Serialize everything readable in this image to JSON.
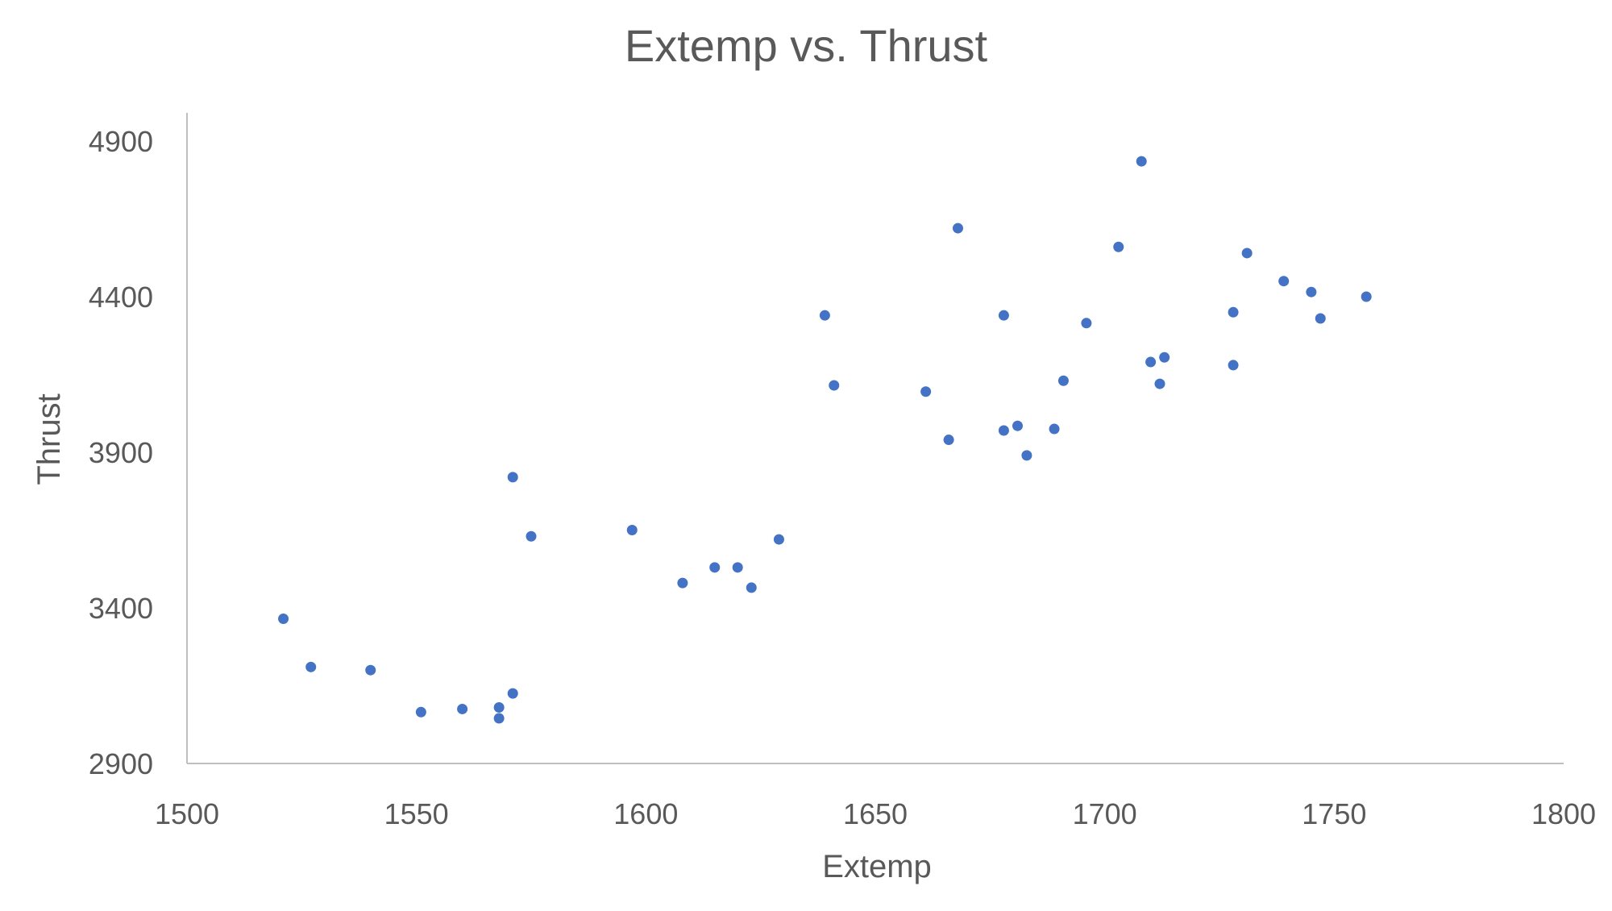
{
  "chart_data": {
    "type": "scatter",
    "title": "Extemp vs. Thrust",
    "xlabel": "Extemp",
    "ylabel": "Thrust",
    "xlim": [
      1500,
      1800
    ],
    "ylim": [
      2900,
      5000
    ],
    "x_ticks": [
      1500,
      1550,
      1600,
      1650,
      1700,
      1750,
      1800
    ],
    "y_ticks": [
      2900,
      3400,
      3900,
      4400,
      4900
    ],
    "grid": false,
    "legend": "none",
    "marker_color": "#4472C4",
    "axis_color": "#bfbfbf",
    "text_color": "#595959",
    "points": [
      {
        "x": 1521,
        "y": 3365
      },
      {
        "x": 1527,
        "y": 3210
      },
      {
        "x": 1540,
        "y": 3200
      },
      {
        "x": 1551,
        "y": 3065
      },
      {
        "x": 1560,
        "y": 3075
      },
      {
        "x": 1568,
        "y": 3080
      },
      {
        "x": 1568,
        "y": 3045
      },
      {
        "x": 1571,
        "y": 3125
      },
      {
        "x": 1571,
        "y": 3820
      },
      {
        "x": 1575,
        "y": 3630
      },
      {
        "x": 1597,
        "y": 3650
      },
      {
        "x": 1608,
        "y": 3480
      },
      {
        "x": 1615,
        "y": 3530
      },
      {
        "x": 1620,
        "y": 3530
      },
      {
        "x": 1623,
        "y": 3465
      },
      {
        "x": 1629,
        "y": 3620
      },
      {
        "x": 1639,
        "y": 4340
      },
      {
        "x": 1641,
        "y": 4115
      },
      {
        "x": 1661,
        "y": 4095
      },
      {
        "x": 1666,
        "y": 3940
      },
      {
        "x": 1668,
        "y": 4620
      },
      {
        "x": 1678,
        "y": 4340
      },
      {
        "x": 1678,
        "y": 3970
      },
      {
        "x": 1681,
        "y": 3985
      },
      {
        "x": 1683,
        "y": 3890
      },
      {
        "x": 1689,
        "y": 3975
      },
      {
        "x": 1691,
        "y": 4130
      },
      {
        "x": 1696,
        "y": 4315
      },
      {
        "x": 1703,
        "y": 4560
      },
      {
        "x": 1708,
        "y": 4835
      },
      {
        "x": 1710,
        "y": 4190
      },
      {
        "x": 1712,
        "y": 4120
      },
      {
        "x": 1713,
        "y": 4205
      },
      {
        "x": 1728,
        "y": 4350
      },
      {
        "x": 1728,
        "y": 4180
      },
      {
        "x": 1731,
        "y": 4540
      },
      {
        "x": 1739,
        "y": 4450
      },
      {
        "x": 1745,
        "y": 4415
      },
      {
        "x": 1747,
        "y": 4330
      },
      {
        "x": 1757,
        "y": 4400
      }
    ]
  }
}
